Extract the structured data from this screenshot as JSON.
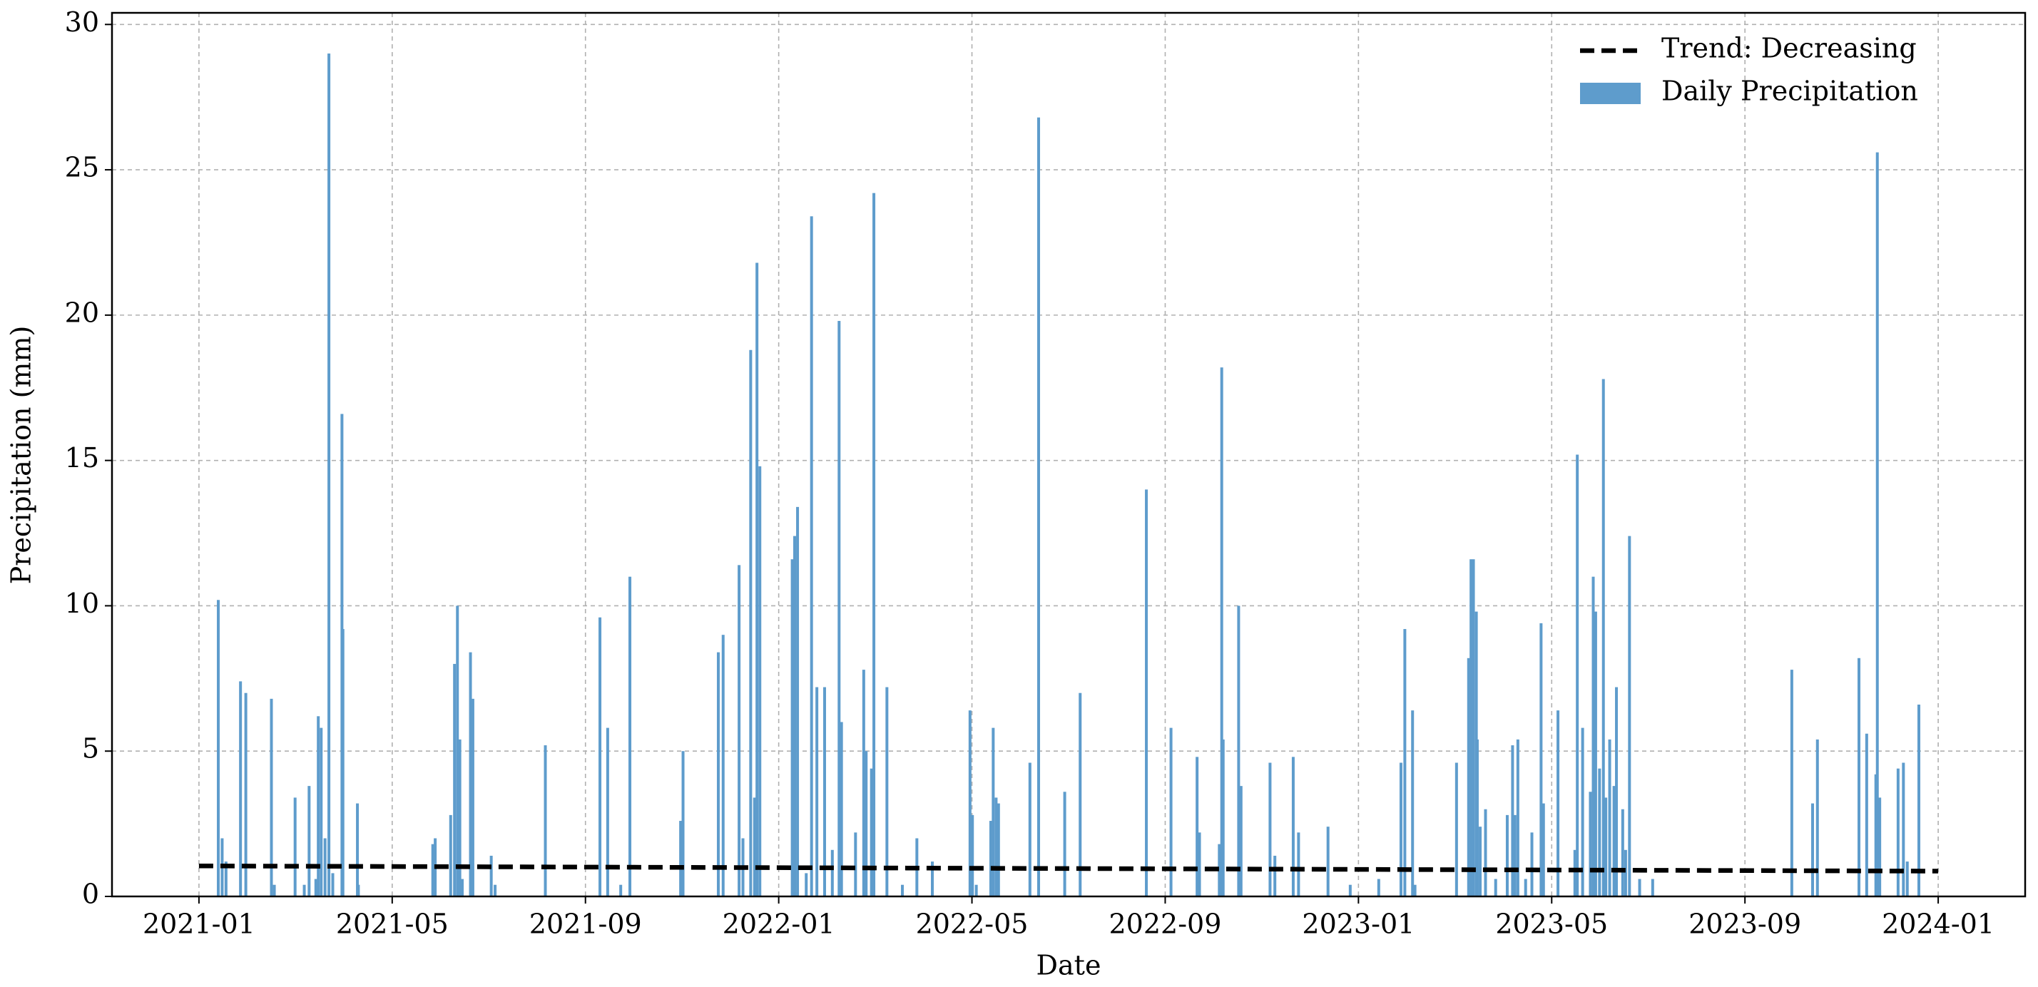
{
  "chart_data": {
    "type": "bar",
    "x_label": "Date",
    "y_label": "Precipitation (mm)",
    "xlim": [
      -1.8,
      37.8
    ],
    "ylim": [
      0,
      30.4
    ],
    "xticks": [
      {
        "value": 0,
        "label": "2021-01"
      },
      {
        "value": 4,
        "label": "2021-05"
      },
      {
        "value": 8,
        "label": "2021-09"
      },
      {
        "value": 12,
        "label": "2022-01"
      },
      {
        "value": 16,
        "label": "2022-05"
      },
      {
        "value": 20,
        "label": "2022-09"
      },
      {
        "value": 24,
        "label": "2023-01"
      },
      {
        "value": 28,
        "label": "2023-05"
      },
      {
        "value": 32,
        "label": "2023-09"
      },
      {
        "value": 36,
        "label": "2024-01"
      }
    ],
    "yticks": [
      0,
      5,
      10,
      15,
      20,
      25,
      30
    ],
    "grid": true,
    "legend": "upper right",
    "series": [
      {
        "name": "Trend: Decreasing",
        "type": "line",
        "color": "#000000",
        "x": [
          0,
          36
        ],
        "values": [
          1.05,
          0.87
        ]
      },
      {
        "name": "Daily Precipitation",
        "type": "bar",
        "color": "#5e9ccc",
        "x": [
          0.4,
          0.48,
          0.56,
          0.86,
          0.97,
          1.5,
          1.56,
          1.99,
          2.18,
          2.28,
          2.42,
          2.47,
          2.53,
          2.61,
          2.69,
          2.77,
          2.96,
          2.98,
          3.28,
          3.3,
          4.84,
          4.89,
          5.21,
          5.29,
          5.35,
          5.4,
          5.45,
          5.62,
          5.67,
          6.05,
          6.13,
          7.17,
          8.3,
          8.46,
          8.73,
          8.92,
          9.97,
          10.02,
          10.75,
          10.85,
          11.18,
          11.26,
          11.42,
          11.5,
          11.55,
          11.61,
          12.28,
          12.33,
          12.39,
          12.57,
          12.68,
          12.79,
          12.95,
          13.11,
          13.25,
          13.3,
          13.59,
          13.76,
          13.81,
          13.92,
          13.97,
          14.24,
          14.56,
          14.86,
          15.18,
          15.96,
          16.01,
          16.09,
          16.39,
          16.44,
          16.5,
          16.55,
          17.2,
          17.38,
          17.92,
          18.24,
          19.61,
          20.12,
          20.66,
          20.71,
          21.12,
          21.17,
          21.2,
          21.52,
          21.57,
          22.17,
          22.27,
          22.65,
          22.76,
          23.37,
          23.83,
          24.42,
          24.88,
          24.96,
          25.12,
          25.17,
          26.03,
          26.28,
          26.33,
          26.38,
          26.44,
          26.46,
          26.52,
          26.63,
          26.84,
          27.08,
          27.19,
          27.24,
          27.3,
          27.46,
          27.59,
          27.78,
          27.83,
          28.13,
          28.48,
          28.53,
          28.64,
          28.8,
          28.86,
          28.91,
          28.99,
          29.07,
          29.12,
          29.2,
          29.29,
          29.34,
          29.47,
          29.53,
          29.61,
          29.82,
          30.09,
          32.97,
          33.4,
          33.5,
          34.36,
          34.52,
          34.71,
          34.74,
          34.79,
          35.17,
          35.28,
          35.36,
          35.6
        ],
        "values": [
          10.2,
          2.0,
          1.2,
          7.4,
          7.0,
          6.8,
          0.4,
          3.4,
          0.4,
          3.8,
          0.6,
          6.2,
          5.8,
          2.0,
          29.0,
          0.8,
          16.6,
          9.2,
          3.2,
          0.4,
          1.8,
          2.0,
          2.8,
          8.0,
          10.0,
          5.4,
          0.6,
          8.4,
          6.8,
          1.4,
          0.4,
          5.2,
          9.6,
          5.8,
          0.4,
          11.0,
          2.6,
          5.0,
          8.4,
          9.0,
          11.4,
          2.0,
          18.8,
          3.4,
          21.8,
          14.8,
          11.6,
          12.4,
          13.4,
          0.8,
          23.4,
          7.2,
          7.2,
          1.6,
          19.8,
          6.0,
          2.2,
          7.8,
          5.0,
          4.4,
          24.2,
          7.2,
          0.4,
          2.0,
          1.2,
          6.4,
          2.8,
          0.4,
          2.6,
          5.8,
          3.4,
          3.2,
          4.6,
          26.8,
          3.6,
          7.0,
          14.0,
          5.8,
          4.8,
          2.2,
          1.8,
          18.2,
          5.4,
          10.0,
          3.8,
          4.6,
          1.4,
          4.8,
          2.2,
          2.4,
          0.4,
          0.6,
          4.6,
          9.2,
          6.4,
          0.4,
          4.6,
          8.2,
          11.6,
          11.6,
          9.8,
          5.4,
          2.4,
          3.0,
          0.6,
          2.8,
          5.2,
          2.8,
          5.4,
          0.6,
          2.2,
          9.4,
          3.2,
          6.4,
          1.6,
          15.2,
          5.8,
          3.6,
          11.0,
          9.8,
          4.4,
          17.8,
          3.4,
          5.4,
          3.8,
          7.2,
          3.0,
          1.6,
          12.4,
          0.6,
          0.6,
          7.8,
          3.2,
          5.4,
          8.2,
          5.6,
          4.2,
          25.6,
          3.4,
          4.4,
          4.6,
          1.2,
          6.6
        ]
      }
    ]
  }
}
